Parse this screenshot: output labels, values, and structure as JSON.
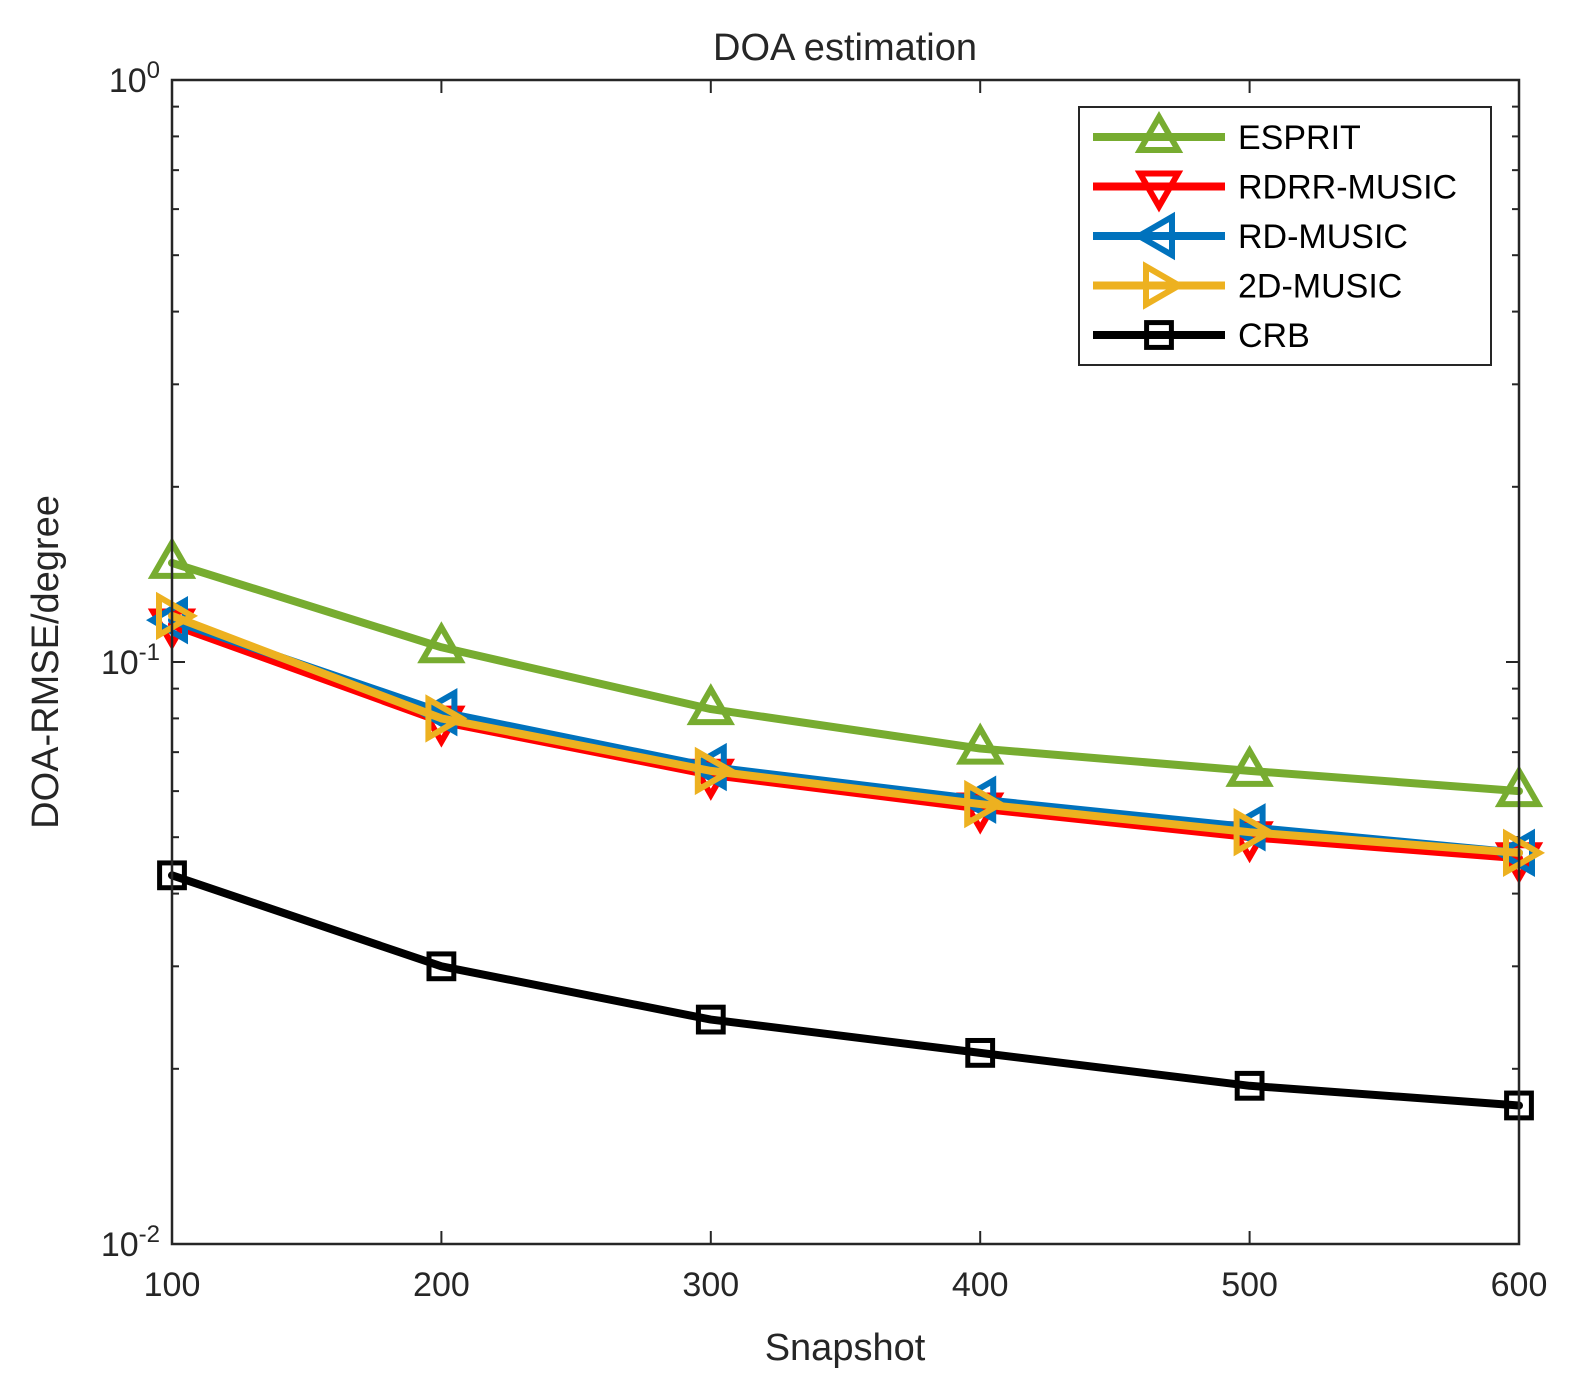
{
  "chart_data": {
    "type": "line",
    "title": "DOA estimation",
    "xlabel": "Snapshot",
    "ylabel": "DOA-RMSE/degree",
    "x": [
      100,
      200,
      300,
      400,
      500,
      600
    ],
    "xlim": [
      100,
      600
    ],
    "ylim": [
      0.01,
      1
    ],
    "yscale": "log",
    "xtick_labels": [
      "100",
      "200",
      "300",
      "400",
      "500",
      "600"
    ],
    "ytick_labels": [
      {
        "base": "10",
        "exp": "-2"
      },
      {
        "base": "10",
        "exp": "-1"
      },
      {
        "base": "10",
        "exp": "0"
      }
    ],
    "legend_position": "top-right",
    "series": [
      {
        "name": "ESPRIT",
        "color": "#77AC30",
        "marker": "triangle-up",
        "values": [
          0.148,
          0.106,
          0.083,
          0.071,
          0.065,
          0.06
        ]
      },
      {
        "name": "RDRR-MUSIC",
        "color": "#FF0000",
        "marker": "triangle-down",
        "values": [
          0.116,
          0.079,
          0.064,
          0.056,
          0.05,
          0.046
        ]
      },
      {
        "name": "RD-MUSIC",
        "color": "#0072BD",
        "marker": "triangle-left",
        "values": [
          0.118,
          0.082,
          0.066,
          0.058,
          0.052,
          0.047
        ]
      },
      {
        "name": "2D-MUSIC",
        "color": "#EDB120",
        "marker": "triangle-right",
        "values": [
          0.12,
          0.08,
          0.065,
          0.057,
          0.051,
          0.047
        ]
      },
      {
        "name": "CRB",
        "color": "#000000",
        "marker": "square",
        "values": [
          0.043,
          0.03,
          0.0243,
          0.0213,
          0.0187,
          0.0173
        ]
      }
    ]
  }
}
